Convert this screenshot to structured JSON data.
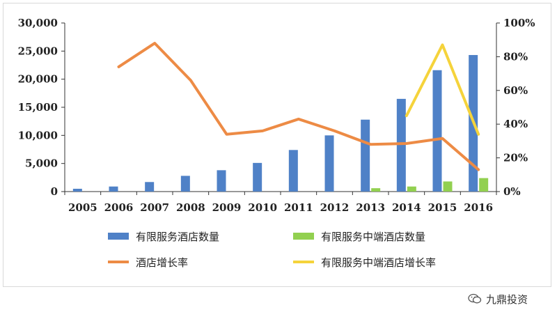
{
  "chart_data": {
    "type": "bar",
    "categories": [
      "2005",
      "2006",
      "2007",
      "2008",
      "2009",
      "2010",
      "2011",
      "2012",
      "2013",
      "2014",
      "2015",
      "2016"
    ],
    "series": [
      {
        "name": "有限服务酒店数量",
        "type": "bar",
        "axis": "left",
        "color": "#4f81c7",
        "values": [
          500,
          900,
          1700,
          2800,
          3800,
          5100,
          7400,
          10000,
          12800,
          16500,
          21600,
          24300
        ]
      },
      {
        "name": "有限服务中端酒店数量",
        "type": "bar",
        "axis": "left",
        "color": "#92d050",
        "values": [
          null,
          null,
          null,
          null,
          null,
          null,
          null,
          null,
          600,
          900,
          1800,
          2400
        ]
      },
      {
        "name": "酒店增长率",
        "type": "line",
        "axis": "right",
        "color": "#ed8b45",
        "values": [
          null,
          74,
          88,
          66,
          34,
          36,
          43,
          36,
          28,
          28.5,
          31.5,
          13
        ]
      },
      {
        "name": "有限服务中端酒店增长率",
        "type": "line",
        "axis": "right",
        "color": "#f5d33b",
        "values": [
          null,
          null,
          null,
          null,
          null,
          null,
          null,
          null,
          null,
          45,
          87,
          34
        ]
      }
    ],
    "y_left": {
      "min": 0,
      "max": 30000,
      "ticks": [
        "0",
        "5,000",
        "10,000",
        "15,000",
        "20,000",
        "25,000",
        "30,000"
      ]
    },
    "y_right": {
      "min": 0,
      "max": 100,
      "unit": "%",
      "ticks": [
        "0%",
        "20%",
        "40%",
        "60%",
        "80%",
        "100%"
      ]
    },
    "legend_position": "bottom",
    "grid": false
  },
  "watermark": {
    "text": "九鼎投资",
    "icon": "wechat-icon"
  }
}
